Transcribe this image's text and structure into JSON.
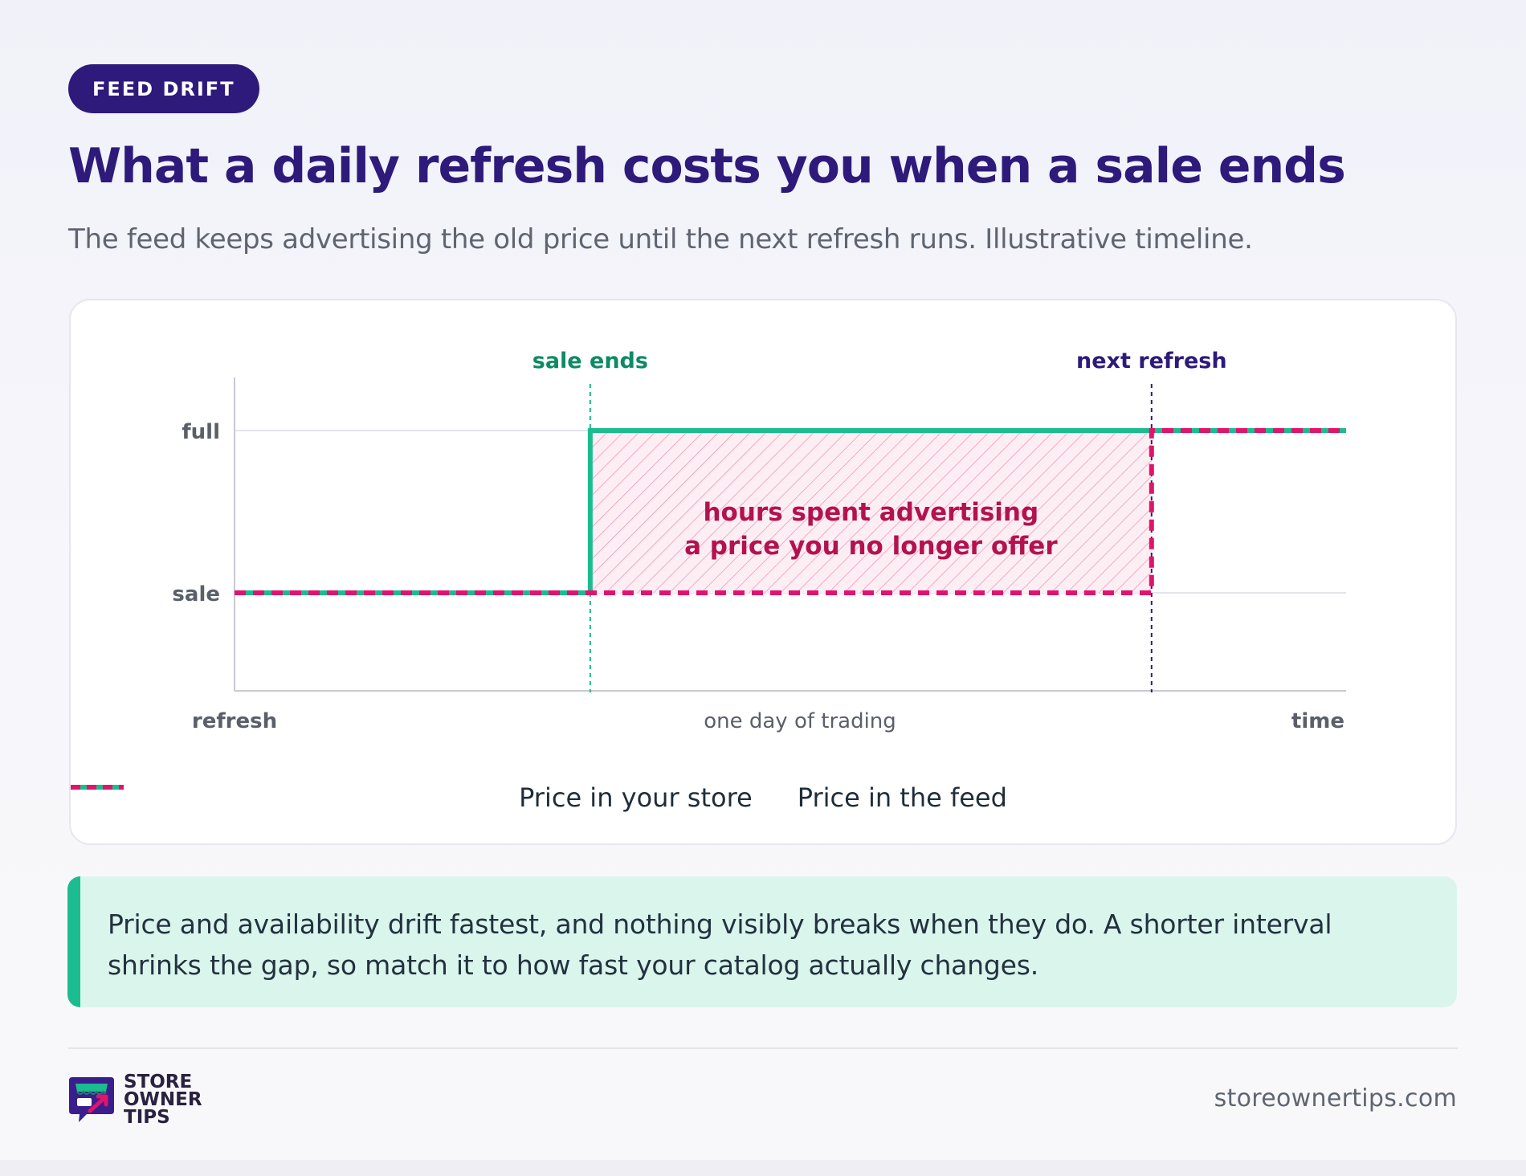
{
  "badge": "FEED DRIFT",
  "title": "What a daily refresh costs you when a sale ends",
  "subtitle": "The feed keeps advertising the old price until the next refresh runs. Illustrative timeline.",
  "colors": {
    "brand": "#2e1a7a",
    "store": "#1bbc8f",
    "feed": "#e0136d",
    "annotation": "#b3124f",
    "sale_marker": "#0e8a64"
  },
  "chart_data": {
    "type": "line",
    "illustrative": true,
    "x_labels": {
      "start": "refresh",
      "middle": "one day of trading",
      "end": "time"
    },
    "y_levels": [
      "sale",
      "full"
    ],
    "markers": [
      {
        "label": "sale ends",
        "at": 0.32,
        "style": "dashed"
      },
      {
        "label": "next refresh",
        "at": 0.825,
        "style": "dashed"
      }
    ],
    "series": [
      {
        "name": "Price in your store",
        "style": "solid",
        "points": [
          [
            0,
            "sale"
          ],
          [
            0.32,
            "sale"
          ],
          [
            0.32,
            "full"
          ],
          [
            1,
            "full"
          ]
        ]
      },
      {
        "name": "Price in the feed",
        "style": "dashed",
        "points": [
          [
            0,
            "sale"
          ],
          [
            0.825,
            "sale"
          ],
          [
            0.825,
            "full"
          ],
          [
            1,
            "full"
          ]
        ]
      }
    ],
    "shaded_region": {
      "from": 0.32,
      "to": 0.825,
      "between": [
        "sale",
        "full"
      ]
    },
    "annotation": [
      "hours spent advertising",
      "a price you no longer offer"
    ],
    "grid": true
  },
  "legend": [
    {
      "label": "Price in your store",
      "icon": "solid-line-icon"
    },
    {
      "label": "Price in the feed",
      "icon": "dashed-line-icon"
    }
  ],
  "callout": "Price and availability drift fastest, and nothing visibly breaks when they do. A shorter interval shrinks the gap, so match it to how fast your catalog actually changes.",
  "logo": {
    "words": [
      "STORE",
      "OWNER",
      "TIPS"
    ],
    "icon": "storefront-chart-icon"
  },
  "site": "storeownertips.com"
}
